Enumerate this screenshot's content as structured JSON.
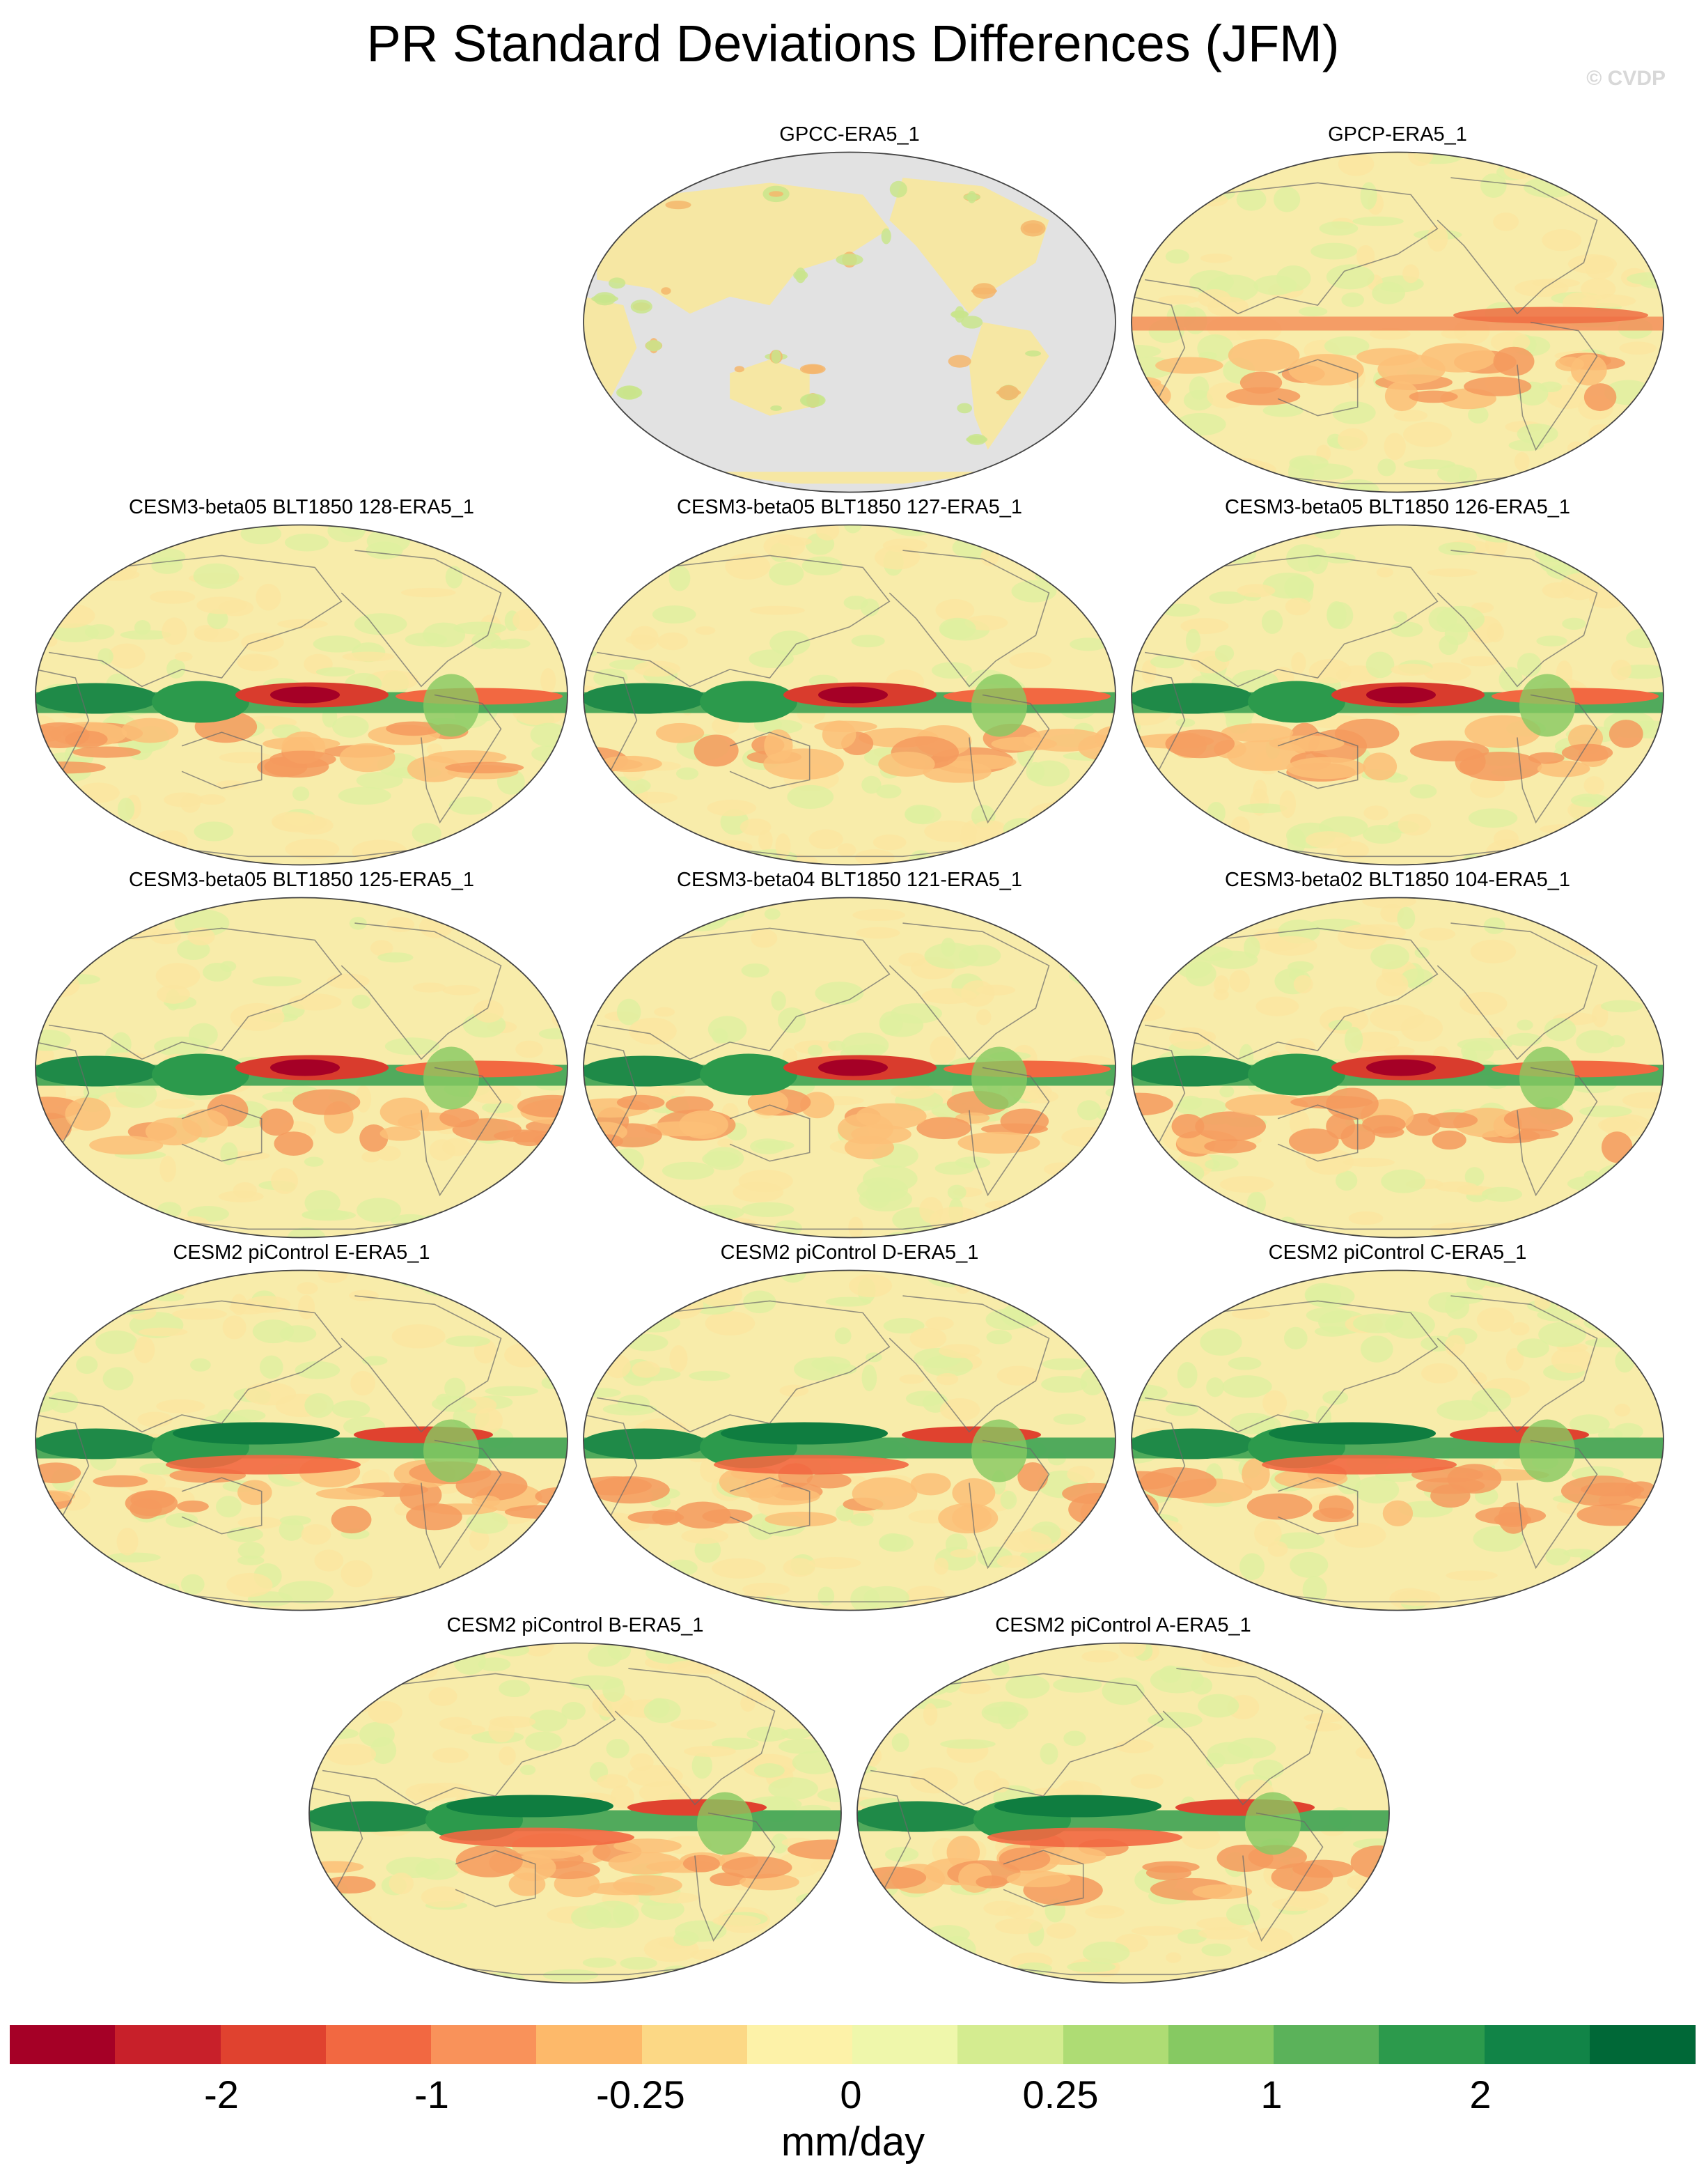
{
  "title": "PR Standard Deviations Differences (JFM)",
  "watermark": "© CVDP",
  "panels": [
    {
      "label": "GPCC-ERA5_1",
      "style": "land"
    },
    {
      "label": "GPCP-ERA5_1",
      "style": "ocean"
    },
    {
      "label": "CESM3-beta05 BLT1850 128-ERA5_1",
      "style": "model-red"
    },
    {
      "label": "CESM3-beta05 BLT1850 127-ERA5_1",
      "style": "model-red"
    },
    {
      "label": "CESM3-beta05 BLT1850 126-ERA5_1",
      "style": "model-red"
    },
    {
      "label": "CESM3-beta05 BLT1850 125-ERA5_1",
      "style": "model-red"
    },
    {
      "label": "CESM3-beta04 BLT1850 121-ERA5_1",
      "style": "model-red"
    },
    {
      "label": "CESM3-beta02 BLT1850 104-ERA5_1",
      "style": "model-red"
    },
    {
      "label": "CESM2 piControl E-ERA5_1",
      "style": "model-green"
    },
    {
      "label": "CESM2 piControl D-ERA5_1",
      "style": "model-green"
    },
    {
      "label": "CESM2 piControl C-ERA5_1",
      "style": "model-green"
    },
    {
      "label": "CESM2 piControl B-ERA5_1",
      "style": "model-green"
    },
    {
      "label": "CESM2 piControl A-ERA5_1",
      "style": "model-green"
    }
  ],
  "colorbar": {
    "colors": [
      "#a50026",
      "#c8202a",
      "#e0422f",
      "#f26841",
      "#f9925a",
      "#fdb96a",
      "#fcd885",
      "#fdf2a8",
      "#eff7ab",
      "#d4ec90",
      "#aedc74",
      "#86c962",
      "#5bb25a",
      "#2c9a4c",
      "#118447",
      "#006837"
    ],
    "tick_labels": [
      "-2",
      "-1",
      "-0.25",
      "0",
      "0.25",
      "1",
      "2"
    ],
    "units": "mm/day"
  }
}
